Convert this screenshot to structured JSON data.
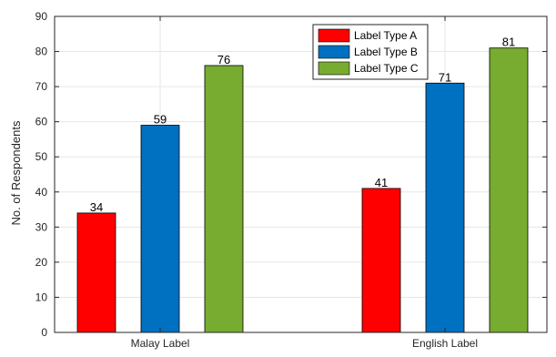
{
  "chart_data": {
    "type": "bar",
    "categories": [
      "Malay Label",
      "English Label"
    ],
    "series": [
      {
        "name": "Label Type A",
        "color": "#ff0000",
        "values": [
          34,
          41
        ]
      },
      {
        "name": "Label Type B",
        "color": "#0070c0",
        "values": [
          59,
          71
        ]
      },
      {
        "name": "Label Type C",
        "color": "#77ac30",
        "values": [
          76,
          81
        ]
      }
    ],
    "ylabel": "No. of Respondents",
    "ylim": [
      0,
      90
    ],
    "yticks": [
      0,
      10,
      20,
      30,
      40,
      50,
      60,
      70,
      80,
      90
    ],
    "grid": true,
    "legend_position": "top-right"
  }
}
